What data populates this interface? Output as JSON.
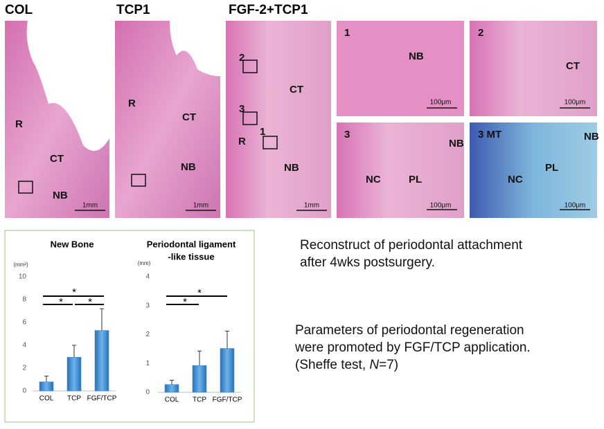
{
  "histology": {
    "column_titles": [
      "COL",
      "TCP1",
      "FGF-2+TCP1"
    ],
    "panels": [
      {
        "labels": [
          "R",
          "CT",
          "NB"
        ],
        "scale": "1mm"
      },
      {
        "labels": [
          "R",
          "CT",
          "NB"
        ],
        "scale": "1mm"
      },
      {
        "labels": [
          "2",
          "3",
          "1",
          "CT",
          "R",
          "NB"
        ],
        "scale": "1mm"
      },
      {
        "labels": [
          "1",
          "NB"
        ],
        "scale": "100μm"
      },
      {
        "labels": [
          "2",
          "CT"
        ],
        "scale": "100μm"
      },
      {
        "labels": [
          "3",
          "NB",
          "NC",
          "PL"
        ],
        "scale": "100μm"
      },
      {
        "labels": [
          "3 MT",
          "NB",
          "NC",
          "PL"
        ],
        "scale": "100μm"
      }
    ]
  },
  "chart_data": [
    {
      "type": "bar",
      "title": [
        "New Bone"
      ],
      "y_label": "(mm²)",
      "categories": [
        "COL",
        "TCP",
        "FGF/TCP"
      ],
      "values": [
        0.8,
        2.95,
        5.3
      ],
      "errors": [
        0.5,
        1.05,
        1.9
      ],
      "color": "#3c8fd4",
      "ylim": [
        0,
        10
      ],
      "yticks": [
        0,
        2,
        4,
        6,
        8,
        10
      ],
      "annotations": [
        "*",
        "*",
        "*"
      ]
    },
    {
      "type": "bar",
      "title": [
        "Periodontal ligament",
        "-like tissue"
      ],
      "y_label": "(mm)",
      "categories": [
        "COL",
        "TCP",
        "FGF/TCP"
      ],
      "values": [
        0.27,
        0.93,
        1.52
      ],
      "errors": [
        0.15,
        0.5,
        0.6
      ],
      "color": "#3c8fd4",
      "ylim": [
        0,
        4
      ],
      "yticks": [
        0,
        1,
        2,
        3,
        4
      ],
      "annotations": [
        "*",
        "*"
      ]
    }
  ],
  "notes": {
    "reconstruct": [
      "Reconstruct of periodontal attachment",
      "after 4wks postsurgery."
    ],
    "parameters": [
      "Parameters of periodontal regeneration",
      "were promoted by FGF/TCP application.",
      "(Sheffe test, ",
      "N",
      "=7)"
    ]
  }
}
